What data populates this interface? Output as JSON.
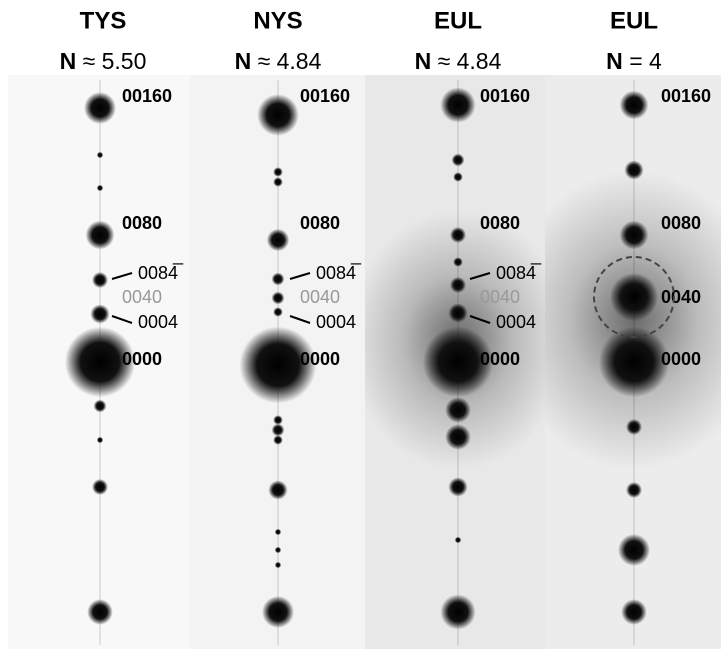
{
  "panels": [
    {
      "title": "TYS",
      "n_label": "N",
      "n_value": "≈ 5.50",
      "spot_labels": [
        "00160",
        "0080",
        "0084̅",
        "0040",
        "0004",
        "0000"
      ]
    },
    {
      "title": "NYS",
      "n_label": "N",
      "n_value": "≈ 4.84",
      "spot_labels": [
        "00160",
        "0080",
        "0084̅",
        "0040",
        "0004",
        "0000"
      ]
    },
    {
      "title": "EUL",
      "n_label": "N",
      "n_value": "≈ 4.84",
      "spot_labels": [
        "00160",
        "0080",
        "0084̅",
        "0040",
        "0004",
        "0000"
      ]
    },
    {
      "title": "EUL",
      "n_label": "N",
      "n_value": "= 4",
      "spot_labels": [
        "00160",
        "0080",
        "0040",
        "0000"
      ]
    }
  ]
}
